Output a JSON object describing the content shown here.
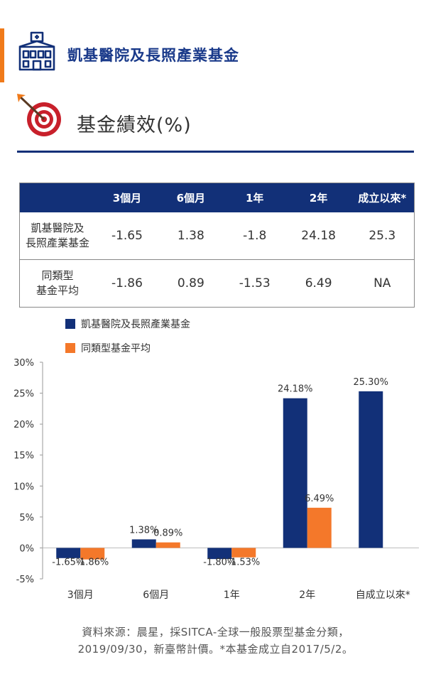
{
  "header": {
    "fund_name": "凱基醫院及長照產業基金",
    "section_title": "基金績效(%)",
    "icons": [
      "hospital-icon",
      "target-icon"
    ]
  },
  "colors": {
    "primary": "#123078",
    "secondary": "#f4782a",
    "accent": "#f07a1a"
  },
  "table": {
    "headers": [
      "",
      "3個月",
      "6個月",
      "1年",
      "2年",
      "成立以來*"
    ],
    "rows": [
      {
        "name_lines": [
          "凱基醫院及",
          "長照產業基金"
        ],
        "values": [
          "-1.65",
          "1.38",
          "-1.8",
          "24.18",
          "25.3"
        ]
      },
      {
        "name_lines": [
          "同類型",
          "基金平均"
        ],
        "values": [
          "-1.86",
          "0.89",
          "-1.53",
          "6.49",
          "NA"
        ]
      }
    ]
  },
  "chart_data": {
    "type": "bar",
    "categories": [
      "3個月",
      "6個月",
      "1年",
      "2年",
      "自成立以來*"
    ],
    "series": [
      {
        "name": "凱基醫院及長照產業基金",
        "color": "#123078",
        "values": [
          -1.65,
          1.38,
          -1.8,
          24.18,
          25.3
        ],
        "labels": [
          "-1.65%",
          "1.38%",
          "-1.80%",
          "24.18%",
          "25.30%"
        ]
      },
      {
        "name": "同類型基金平均",
        "color": "#f4782a",
        "values": [
          -1.86,
          0.89,
          -1.53,
          6.49,
          null
        ],
        "labels": [
          "-1.86%",
          "0.89%",
          "-1.53%",
          "6.49%",
          ""
        ]
      }
    ],
    "yticks": [
      "30%",
      "25%",
      "20%",
      "15%",
      "10%",
      "5%",
      "0%",
      "-5%"
    ],
    "ylim": [
      -5,
      30
    ],
    "grid": false,
    "legend_position": "top-left"
  },
  "source_note": {
    "line1": "資料來源：晨星，採SITCA-全球一般股票型基金分類，",
    "line2": "2019/09/30，新臺幣計價。*本基金成立自2017/5/2。"
  }
}
